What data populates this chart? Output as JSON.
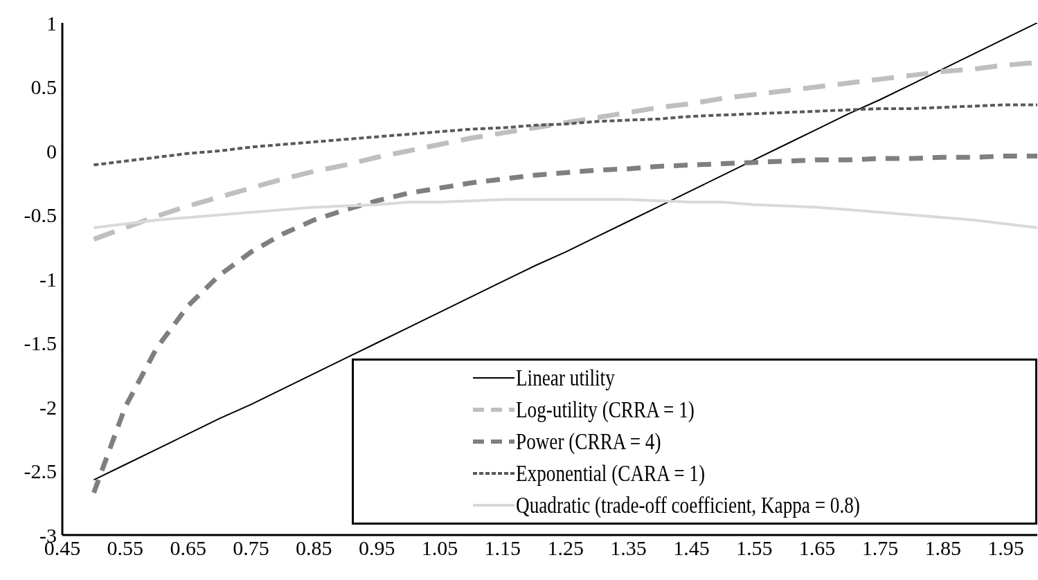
{
  "chart_data": {
    "type": "line",
    "x": [
      0.5,
      0.55,
      0.6,
      0.65,
      0.7,
      0.75,
      0.8,
      0.85,
      0.9,
      0.95,
      1.0,
      1.05,
      1.1,
      1.15,
      1.2,
      1.25,
      1.3,
      1.35,
      1.4,
      1.45,
      1.5,
      1.55,
      1.6,
      1.65,
      1.7,
      1.75,
      1.8,
      1.85,
      1.9,
      1.95,
      2.0
    ],
    "series": [
      {
        "name": "Linear utility",
        "color": "#000000",
        "line_style": "solid",
        "values": [
          -2.57,
          -2.45,
          -2.33,
          -2.21,
          -2.09,
          -1.98,
          -1.86,
          -1.74,
          -1.62,
          -1.5,
          -1.38,
          -1.26,
          -1.14,
          -1.02,
          -0.9,
          -0.79,
          -0.67,
          -0.55,
          -0.43,
          -0.31,
          -0.19,
          -0.07,
          0.05,
          0.17,
          0.29,
          0.4,
          0.52,
          0.64,
          0.76,
          0.88,
          1.0
        ]
      },
      {
        "name": "Log-utility (CRRA = 1)",
        "color": "#bfbfbf",
        "line_style": "dashed",
        "values": [
          -0.69,
          -0.6,
          -0.51,
          -0.43,
          -0.36,
          -0.29,
          -0.22,
          -0.16,
          -0.11,
          -0.05,
          0,
          0.05,
          0.1,
          0.14,
          0.18,
          0.22,
          0.26,
          0.3,
          0.34,
          0.37,
          0.41,
          0.44,
          0.47,
          0.5,
          0.53,
          0.56,
          0.59,
          0.62,
          0.64,
          0.67,
          0.69
        ]
      },
      {
        "name": "Power (CRRA = 4)",
        "color": "#7f7f7f",
        "line_style": "dashed",
        "values": [
          -2.67,
          -2.0,
          -1.54,
          -1.21,
          -0.97,
          -0.79,
          -0.65,
          -0.54,
          -0.46,
          -0.39,
          -0.33,
          -0.29,
          -0.25,
          -0.22,
          -0.19,
          -0.17,
          -0.15,
          -0.14,
          -0.12,
          -0.11,
          -0.1,
          -0.09,
          -0.08,
          -0.07,
          -0.07,
          -0.06,
          -0.06,
          -0.05,
          -0.05,
          -0.04,
          -0.04
        ]
      },
      {
        "name": "Exponential (CARA = 1)",
        "color": "#595959",
        "line_style": "dotted",
        "values": [
          -0.11,
          -0.08,
          -0.05,
          -0.02,
          0.0,
          0.03,
          0.05,
          0.07,
          0.09,
          0.11,
          0.13,
          0.15,
          0.17,
          0.18,
          0.2,
          0.21,
          0.23,
          0.24,
          0.25,
          0.27,
          0.28,
          0.29,
          0.3,
          0.31,
          0.32,
          0.33,
          0.33,
          0.34,
          0.35,
          0.36,
          0.36
        ]
      },
      {
        "name": "Quadratic (trade-off coefficient, Kappa = 0.8)",
        "color": "#d9d9d9",
        "line_style": "solid",
        "values": [
          -0.6,
          -0.57,
          -0.54,
          -0.52,
          -0.5,
          -0.48,
          -0.46,
          -0.44,
          -0.43,
          -0.42,
          -0.4,
          -0.4,
          -0.39,
          -0.38,
          -0.38,
          -0.38,
          -0.38,
          -0.38,
          -0.39,
          -0.4,
          -0.4,
          -0.42,
          -0.43,
          -0.44,
          -0.46,
          -0.48,
          -0.5,
          -0.52,
          -0.54,
          -0.57,
          -0.6
        ]
      }
    ],
    "xlim": [
      0.45,
      2.0
    ],
    "xticks": [
      0.45,
      0.55,
      0.65,
      0.75,
      0.85,
      0.95,
      1.05,
      1.15,
      1.25,
      1.35,
      1.45,
      1.55,
      1.65,
      1.75,
      1.85,
      1.95
    ],
    "ylim": [
      -3,
      1
    ],
    "yticks": [
      -3,
      -2.5,
      -2,
      -1.5,
      -1,
      -0.5,
      0,
      0.5,
      1
    ],
    "grid": false,
    "legend": "bottom right",
    "marker": "none"
  }
}
